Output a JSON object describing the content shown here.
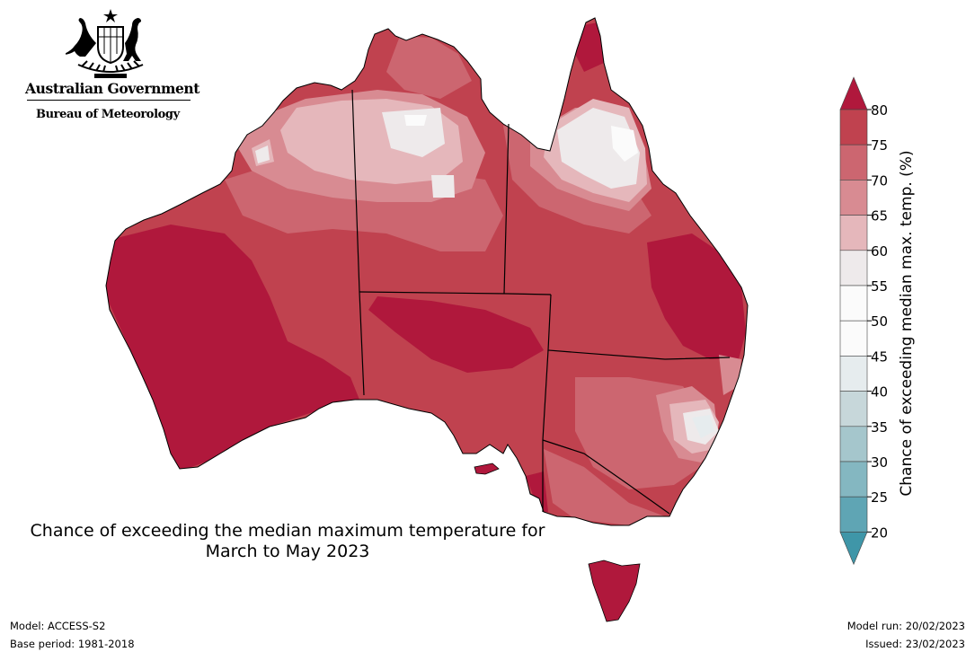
{
  "header": {
    "government": "Australian Government",
    "bureau": "Bureau of Meteorology"
  },
  "map": {
    "title_line1": "Chance of exceeding the median maximum temperature for",
    "title_line2": "March to May 2023",
    "region": "Australia",
    "regions": [
      "WA",
      "NT",
      "SA",
      "QLD",
      "NSW",
      "VIC",
      "TAS"
    ]
  },
  "legend": {
    "label": "Chance of exceeding median max. temp. (%)",
    "ticks": [
      "80",
      "75",
      "70",
      "65",
      "60",
      "55",
      "50",
      "45",
      "40",
      "35",
      "30",
      "25",
      "20"
    ],
    "colors_top_to_bottom": [
      "#b0183c",
      "#c0424f",
      "#cc6670",
      "#d88b92",
      "#e5b7bb",
      "#eeeaeb",
      "#fbfbfb",
      "#fbfbfb",
      "#e6ecee",
      "#c7d7da",
      "#a5c6cc",
      "#84b7c1",
      "#5fa5b4",
      "#3f96a8"
    ]
  },
  "footer": {
    "model": "Model: ACCESS-S2",
    "base_period": "Base period: 1981-2018",
    "model_run": "Model run: 20/02/2023",
    "issued": "Issued: 23/02/2023"
  }
}
